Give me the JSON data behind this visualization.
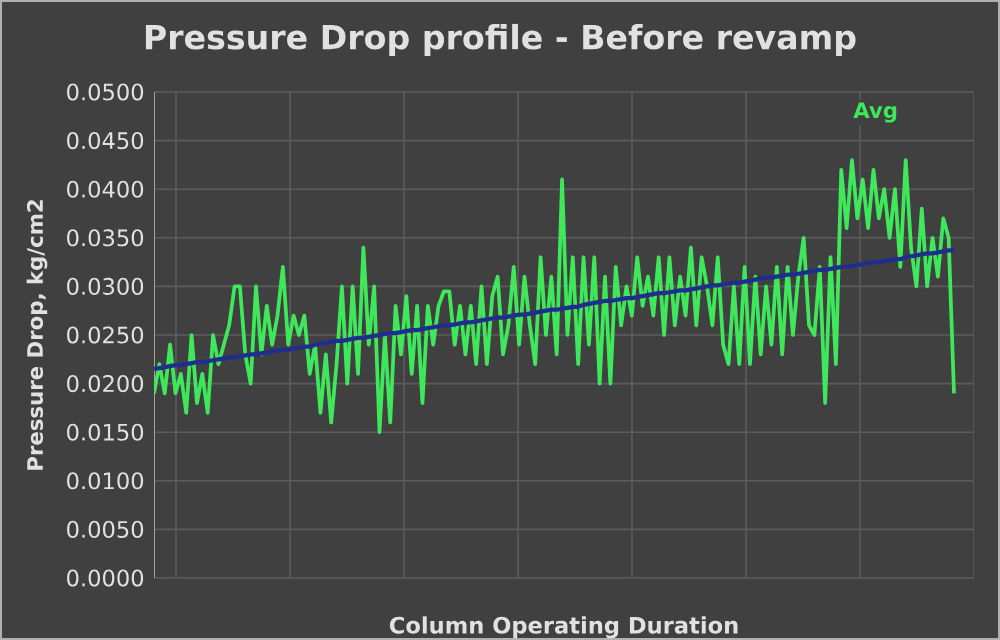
{
  "chart_data": {
    "type": "line",
    "title": "Pressure Drop profile - Before revamp",
    "xlabel": "Column Operating Duration",
    "ylabel": "Pressure Drop, kg/cm2",
    "annotations": [
      "Avg"
    ],
    "categories": [
      null,
      null,
      null,
      null,
      null,
      null,
      null,
      null,
      null,
      null,
      null,
      null,
      null,
      null,
      null,
      null,
      null,
      null,
      null,
      null,
      null,
      null,
      null,
      null,
      null,
      null,
      null,
      null,
      null,
      null,
      null,
      null,
      null,
      null,
      null,
      null,
      null,
      null,
      null,
      null,
      null,
      null,
      null,
      null,
      null,
      null,
      null,
      null,
      null,
      null,
      null,
      null,
      null,
      null,
      null,
      null,
      null,
      null,
      null,
      null,
      null,
      null,
      null,
      null,
      null,
      null,
      null,
      null,
      null,
      null,
      null,
      null,
      null,
      null,
      null,
      null,
      null,
      null,
      null,
      null,
      null,
      null,
      null,
      null,
      null,
      null,
      null,
      null,
      null,
      null,
      null,
      null,
      null,
      null,
      null,
      null,
      null,
      null,
      null,
      null,
      null,
      null,
      null,
      null,
      null,
      null,
      null,
      null,
      null,
      null,
      null,
      null,
      null,
      null,
      null,
      null,
      null,
      null,
      null,
      null,
      null,
      null,
      null,
      null,
      null,
      null,
      null,
      null,
      null,
      null,
      null,
      null,
      null,
      null,
      null,
      null,
      null,
      null,
      null,
      null,
      null,
      null,
      null,
      null,
      null,
      null,
      null,
      null,
      null,
      null
    ],
    "ylim": [
      0,
      0.05
    ],
    "yticks": [
      {
        "value": 0,
        "label": "0.0000"
      },
      {
        "value": 0.005,
        "label": "0.0050"
      },
      {
        "value": 0.01,
        "label": "0.0100"
      },
      {
        "value": 0.015,
        "label": "0.0150"
      },
      {
        "value": 0.02,
        "label": "0.0200"
      },
      {
        "value": 0.025,
        "label": "0.0250"
      },
      {
        "value": 0.03,
        "label": "0.0300"
      },
      {
        "value": 0.035,
        "label": "0.0350"
      },
      {
        "value": 0.04,
        "label": "0.0400"
      },
      {
        "value": 0.045,
        "label": "0.0450"
      },
      {
        "value": 0.05,
        "label": "0.0500"
      }
    ],
    "grid": true,
    "legend": false,
    "marker": "none",
    "series": [
      {
        "color": "#3ee85a",
        "values": [
          0.019,
          0.022,
          0.019,
          0.024,
          0.019,
          0.021,
          0.017,
          0.025,
          0.018,
          0.021,
          0.017,
          0.025,
          0.022,
          0.024,
          0.026,
          0.03,
          0.03,
          0.023,
          0.02,
          0.03,
          0.023,
          0.028,
          0.024,
          0.027,
          0.032,
          0.024,
          0.027,
          0.025,
          0.027,
          0.021,
          0.024,
          0.017,
          0.023,
          0.016,
          0.022,
          0.03,
          0.02,
          0.03,
          0.021,
          0.034,
          0.024,
          0.03,
          0.015,
          0.025,
          0.016,
          0.028,
          0.023,
          0.029,
          0.021,
          0.028,
          0.018,
          0.028,
          0.024,
          0.028,
          0.0295,
          0.0295,
          0.024,
          0.028,
          0.023,
          0.028,
          0.022,
          0.03,
          0.022,
          0.029,
          0.031,
          0.023,
          0.026,
          0.032,
          0.024,
          0.031,
          0.026,
          0.022,
          0.033,
          0.025,
          0.031,
          0.023,
          0.041,
          0.025,
          0.033,
          0.022,
          0.033,
          0.024,
          0.033,
          0.02,
          0.031,
          0.02,
          0.032,
          0.026,
          0.03,
          0.027,
          0.033,
          0.028,
          0.031,
          0.027,
          0.033,
          0.025,
          0.033,
          0.026,
          0.031,
          0.027,
          0.034,
          0.026,
          0.033,
          0.03,
          0.026,
          0.033,
          0.024,
          0.022,
          0.03,
          0.022,
          0.032,
          0.022,
          0.031,
          0.023,
          0.03,
          0.024,
          0.032,
          0.023,
          0.032,
          0.025,
          0.031,
          0.035,
          0.026,
          0.025,
          0.032,
          0.018,
          0.033,
          0.022,
          0.042,
          0.036,
          0.043,
          0.037,
          0.041,
          0.036,
          0.042,
          0.037,
          0.04,
          0.035,
          0.04,
          0.032,
          0.043,
          0.034,
          0.03,
          0.038,
          0.03,
          0.035,
          0.031,
          0.037,
          0.035,
          0.019
        ]
      },
      {
        "type": "line",
        "color": "#1f2d8f",
        "values": [
          0.0215,
          0.0216,
          0.0217,
          0.0218,
          0.0219,
          0.0219,
          0.022,
          0.0221,
          0.0222,
          0.0222,
          0.0223,
          0.0224,
          0.0225,
          0.0226,
          0.0227,
          0.0227,
          0.0228,
          0.0229,
          0.023,
          0.023,
          0.0231,
          0.0232,
          0.0233,
          0.0234,
          0.0235,
          0.0235,
          0.0236,
          0.0237,
          0.0238,
          0.0238,
          0.024,
          0.0241,
          0.0242,
          0.0243,
          0.0244,
          0.0244,
          0.0245,
          0.0246,
          0.0247,
          0.0247,
          0.0248,
          0.0249,
          0.025,
          0.0251,
          0.0252,
          0.0252,
          0.0253,
          0.0254,
          0.0255,
          0.0255,
          0.0256,
          0.0257,
          0.0258,
          0.0259,
          0.026,
          0.026,
          0.0261,
          0.0262,
          0.0263,
          0.0263,
          0.0264,
          0.0265,
          0.0266,
          0.0267,
          0.0268,
          0.0268,
          0.0269,
          0.027,
          0.0271,
          0.0271,
          0.0272,
          0.0273,
          0.0274,
          0.0275,
          0.0276,
          0.0276,
          0.0277,
          0.0278,
          0.0279,
          0.0279,
          0.0281,
          0.0282,
          0.0283,
          0.0284,
          0.0285,
          0.0285,
          0.0286,
          0.0287,
          0.0288,
          0.0288,
          0.0289,
          0.029,
          0.0291,
          0.0292,
          0.0293,
          0.0293,
          0.0294,
          0.0295,
          0.0296,
          0.0296,
          0.0297,
          0.0298,
          0.0299,
          0.03,
          0.0301,
          0.0301,
          0.0302,
          0.0303,
          0.0304,
          0.0304,
          0.0305,
          0.0306,
          0.0307,
          0.0308,
          0.0309,
          0.0309,
          0.031,
          0.0311,
          0.0312,
          0.0312,
          0.0313,
          0.0314,
          0.0315,
          0.0316,
          0.0317,
          0.0317,
          0.0318,
          0.0319,
          0.032,
          0.032,
          0.0321,
          0.0322,
          0.0323,
          0.0324,
          0.0325,
          0.0325,
          0.0326,
          0.0327,
          0.0328,
          0.0328,
          0.033,
          0.0331,
          0.0332,
          0.0333,
          0.0334,
          0.0334,
          0.0335,
          0.0336,
          0.0337,
          0.0337
        ]
      }
    ]
  }
}
